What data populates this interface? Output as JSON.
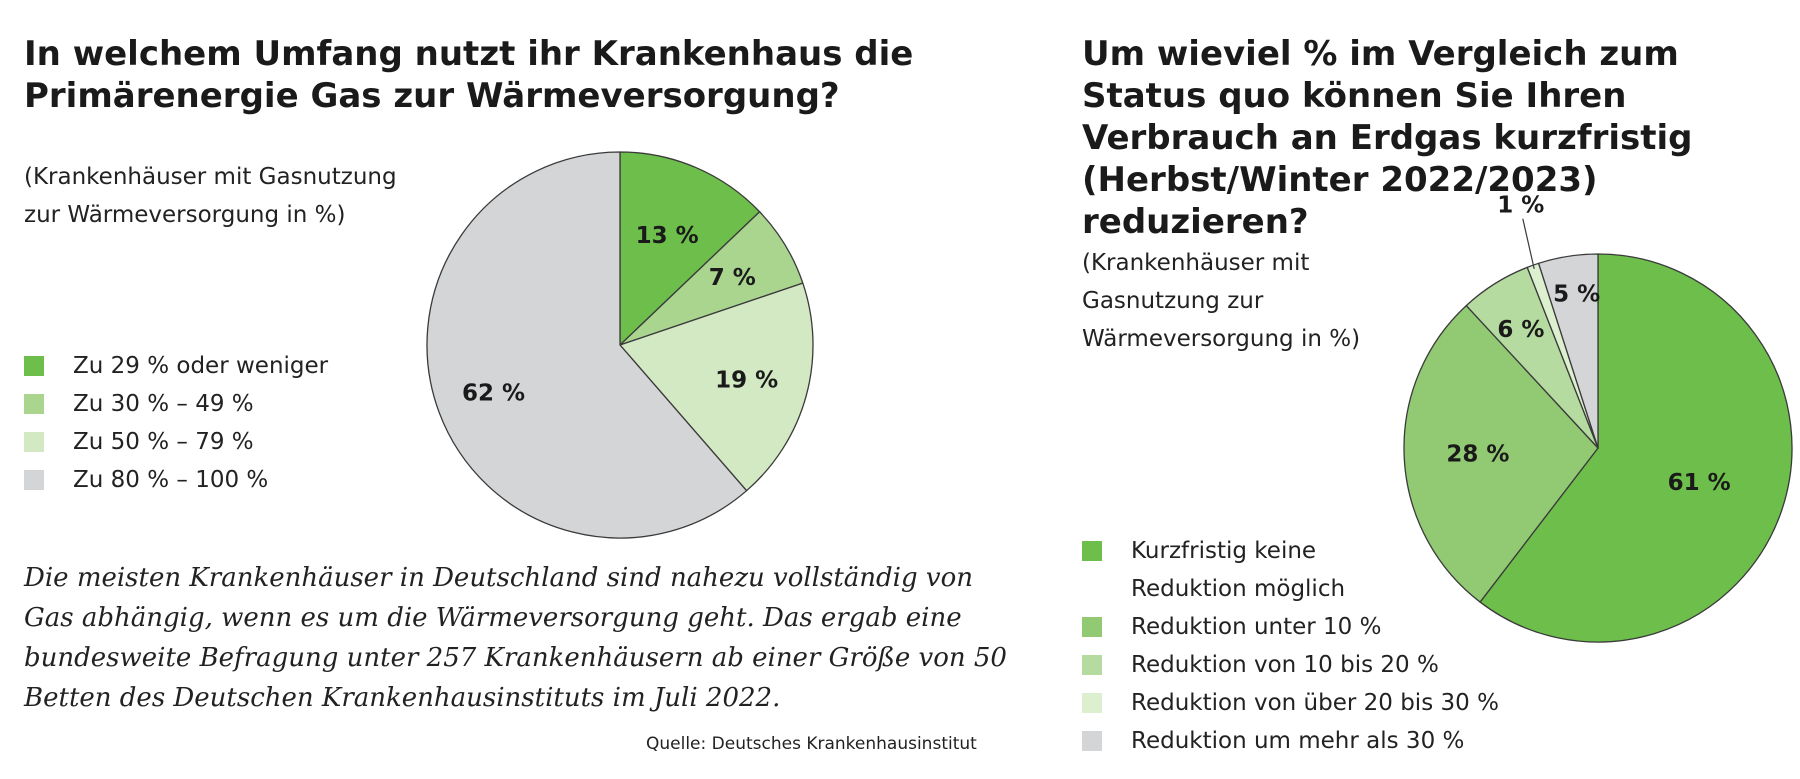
{
  "left": {
    "title": "In welchem Umfang nutzt ihr Krankenhaus die Primärenergie Gas zur Wärmeversorgung?",
    "subtitle": "(Krankenhäuser mit Gasnutzung zur Wärmeversorgung in %)",
    "description": "Die meisten Krankenhäuser in Deutschland sind nahezu vollständig von Gas abhängig, wenn es um die Wärmeversorgung geht. Das ergab eine bundesweite Befragung unter 257 Krankenhäusern ab einer Größe von 50 Betten des Deutschen Krankenhausinstituts im Juli 2022.",
    "source": "Quelle: Deutsches Krankenhausinstitut"
  },
  "right": {
    "title": "Um wieviel % im Vergleich zum Status quo können Sie Ihren Verbrauch an Erdgas kurzfristig (Herbst/Winter 2022/2023) reduzieren?",
    "subtitle": "(Krankenhäuser mit Gasnutzung zur Wärmeversorgung in %)"
  },
  "chart_data": [
    {
      "type": "pie",
      "title": "In welchem Umfang nutzt ihr Krankenhaus die Primärenergie Gas zur Wärmeversorgung?",
      "subtitle": "(Krankenhäuser mit Gasnutzung zur Wärmeversorgung in %)",
      "unit": "%",
      "start_angle": 0,
      "direction": "clockwise",
      "legend_position": "left",
      "slices": [
        {
          "label": "Zu 29 % oder weniger",
          "value": 13,
          "value_label": "13 %",
          "color": "#6dbe4b"
        },
        {
          "label": "Zu 30 % – 49 %",
          "value": 7,
          "value_label": "7 %",
          "color": "#a9d58f"
        },
        {
          "label": "Zu 50 % – 79 %",
          "value": 19,
          "value_label": "19 %",
          "color": "#d3e9c3"
        },
        {
          "label": "Zu 80 % – 100 %",
          "value": 62,
          "value_label": "62 %",
          "color": "#d4d5d7"
        }
      ]
    },
    {
      "type": "pie",
      "title": "Um wieviel % im Vergleich zum Status quo können Sie Ihren Verbrauch an Erdgas kurzfristig (Herbst/Winter 2022/2023) reduzieren?",
      "subtitle": "(Krankenhäuser mit Gasnutzung zur Wärmeversorgung in %)",
      "unit": "%",
      "start_angle": 0,
      "direction": "clockwise",
      "legend_position": "bottom-left",
      "slices": [
        {
          "label": "Kurzfristig keine Reduktion möglich",
          "value": 61,
          "value_label": "61 %",
          "color": "#6dbe4b"
        },
        {
          "label": "Reduktion unter 10 %",
          "value": 28,
          "value_label": "28 %",
          "color": "#92ca74"
        },
        {
          "label": "Reduktion von 10 bis 20 %",
          "value": 6,
          "value_label": "6 %",
          "color": "#b5dba0"
        },
        {
          "label": "Reduktion von über 20 bis 30 %",
          "value": 1,
          "value_label": "1 %",
          "color": "#dcefcf"
        },
        {
          "label": "Reduktion um mehr als 30 %",
          "value": 5,
          "value_label": "5 %",
          "color": "#d4d5d7"
        }
      ]
    }
  ]
}
